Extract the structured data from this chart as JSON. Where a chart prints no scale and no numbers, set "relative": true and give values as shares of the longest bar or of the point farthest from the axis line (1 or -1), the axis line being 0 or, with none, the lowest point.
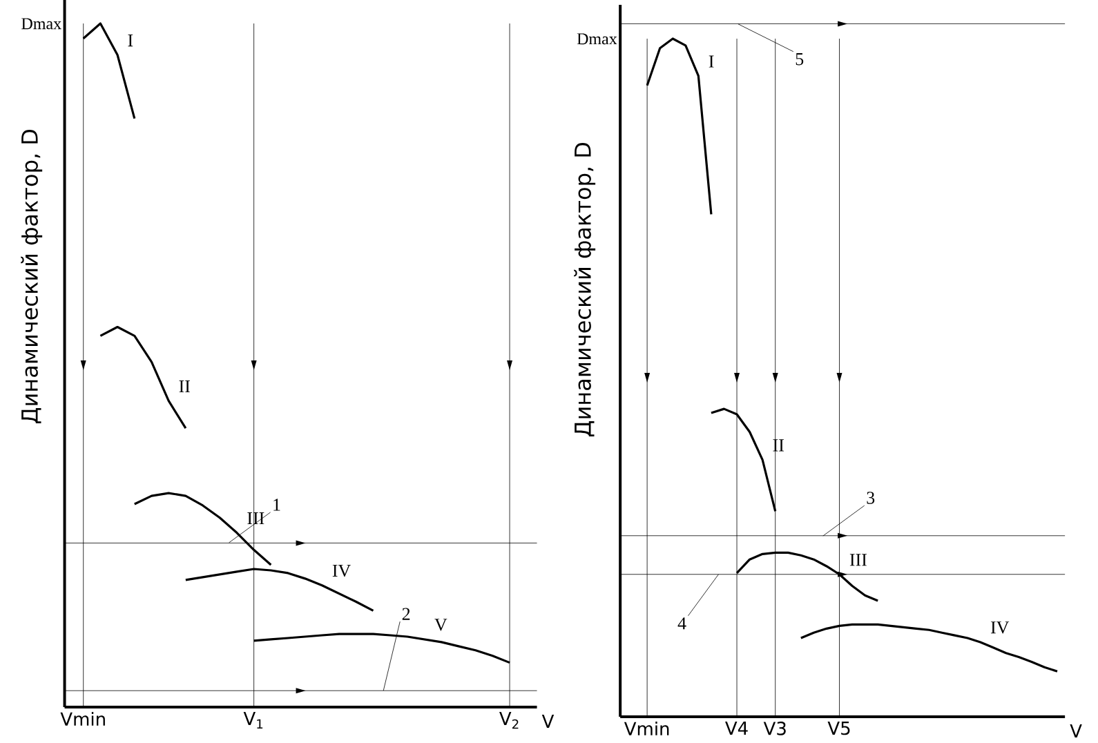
{
  "chart_data": [
    {
      "type": "line",
      "relative": true,
      "ylabel": "Динамический фактор, D",
      "xlabel": "V",
      "categories": [
        null,
        "Vmin",
        null,
        null,
        null,
        null,
        null,
        null,
        null,
        null,
        null,
        "V$_{1}$",
        null,
        null,
        null,
        null,
        null,
        null,
        null,
        null,
        null,
        null,
        null,
        null,
        null,
        null,
        "V$_{2}$",
        null
      ],
      "series": [
        {
          "name": "I",
          "color": "#000000",
          "values": [
            null,
            0.978,
            1,
            0.954,
            0.861,
            null,
            null,
            null,
            null,
            null,
            null,
            null,
            null,
            null,
            null,
            null,
            null,
            null,
            null,
            null,
            null,
            null,
            null,
            null,
            null,
            null,
            null,
            null
          ]
        },
        {
          "name": "II",
          "color": "#000000",
          "values": [
            null,
            null,
            0.543,
            0.556,
            0.543,
            0.505,
            0.448,
            0.408,
            null,
            null,
            null,
            null,
            null,
            null,
            null,
            null,
            null,
            null,
            null,
            null,
            null,
            null,
            null,
            null,
            null,
            null,
            null,
            null
          ]
        },
        {
          "name": "III",
          "color": "#000000",
          "values": [
            null,
            null,
            null,
            null,
            0.297,
            0.309,
            0.313,
            0.309,
            0.295,
            0.277,
            0.255,
            0.23,
            0.208,
            null,
            null,
            null,
            null,
            null,
            null,
            null,
            null,
            null,
            null,
            null,
            null,
            null,
            null,
            null
          ]
        },
        {
          "name": "IV",
          "color": "#000000",
          "values": [
            null,
            null,
            null,
            null,
            null,
            null,
            null,
            0.186,
            0.19,
            0.194,
            0.198,
            0.202,
            0.2,
            0.196,
            0.188,
            0.178,
            0.166,
            0.154,
            0.141,
            null,
            null,
            null,
            null,
            null,
            null,
            null,
            null,
            null
          ]
        },
        {
          "name": "V",
          "color": "#000000",
          "values": [
            null,
            null,
            null,
            null,
            null,
            null,
            null,
            null,
            null,
            null,
            null,
            0.097,
            0.099,
            0.101,
            0.103,
            0.105,
            0.107,
            0.107,
            0.107,
            0.105,
            0.103,
            0.099,
            0.095,
            0.089,
            0.083,
            0.075,
            0.065,
            null
          ]
        }
      ],
      "ref_lines": [
        {
          "axis": "y",
          "value": 0.24
        },
        {
          "axis": "y",
          "value": 0.024
        },
        {
          "axis": "x",
          "value": "Vmin"
        },
        {
          "axis": "x",
          "value": "V$_{1}$"
        },
        {
          "axis": "x",
          "value": "V$_{2}$"
        }
      ],
      "annotations": [
        "Dmax",
        "1",
        "2"
      ]
    },
    {
      "type": "line",
      "relative": true,
      "ylabel": "Динамический фактор, D",
      "xlabel": "V",
      "categories": [
        null,
        null,
        "Vmin",
        null,
        null,
        null,
        null,
        null,
        null,
        "V4",
        null,
        null,
        "V3",
        null,
        null,
        null,
        null,
        "V5",
        null,
        null,
        null,
        null,
        null,
        null,
        null,
        null,
        null,
        null,
        null,
        null,
        null,
        null,
        null,
        null,
        null
      ],
      "series": [
        {
          "name": "I",
          "color": "#000000",
          "values": [
            null,
            null,
            0.931,
            0.986,
            1,
            0.99,
            0.945,
            0.741,
            null,
            null,
            null,
            null,
            null,
            null,
            null,
            null,
            null,
            null,
            null,
            null,
            null,
            null,
            null,
            null,
            null,
            null,
            null,
            null,
            null,
            null,
            null,
            null,
            null,
            null,
            null
          ]
        },
        {
          "name": "II",
          "color": "#000000",
          "values": [
            null,
            null,
            null,
            null,
            null,
            null,
            null,
            0.448,
            0.454,
            0.446,
            0.42,
            0.379,
            0.303,
            null,
            null,
            null,
            null,
            null,
            null,
            null,
            null,
            null,
            null,
            null,
            null,
            null,
            null,
            null,
            null,
            null,
            null,
            null,
            null,
            null,
            null
          ]
        },
        {
          "name": "III",
          "color": "#000000",
          "values": [
            null,
            null,
            null,
            null,
            null,
            null,
            null,
            null,
            null,
            0.212,
            0.232,
            0.24,
            0.242,
            0.242,
            0.238,
            0.232,
            0.222,
            0.21,
            0.193,
            0.179,
            0.171,
            null,
            null,
            null,
            null,
            null,
            null,
            null,
            null,
            null,
            null,
            null,
            null,
            null,
            null
          ]
        },
        {
          "name": "IV",
          "color": "#000000",
          "values": [
            null,
            null,
            null,
            null,
            null,
            null,
            null,
            null,
            null,
            null,
            null,
            null,
            null,
            null,
            0.116,
            0.124,
            0.13,
            0.134,
            0.136,
            0.136,
            0.136,
            0.134,
            0.132,
            0.13,
            0.128,
            0.124,
            0.12,
            0.116,
            0.11,
            0.102,
            0.094,
            0.088,
            0.081,
            0.073,
            0.067
          ]
        }
      ],
      "ref_lines": [
        {
          "axis": "y",
          "value": 1.022
        },
        {
          "axis": "y",
          "value": 0.267
        },
        {
          "axis": "y",
          "value": 0.21
        },
        {
          "axis": "x",
          "value": "Vmin"
        },
        {
          "axis": "x",
          "value": "V4"
        },
        {
          "axis": "x",
          "value": "V3"
        },
        {
          "axis": "x",
          "value": "V5"
        }
      ],
      "annotations": [
        "Dmax",
        "5",
        "3",
        "4"
      ]
    }
  ]
}
